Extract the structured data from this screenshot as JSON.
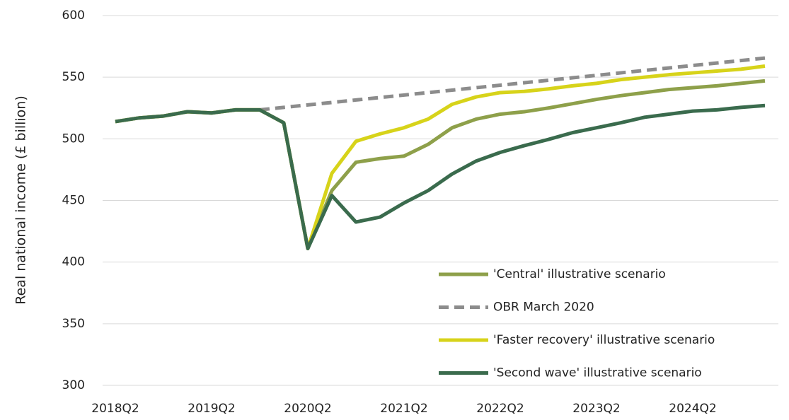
{
  "chart_data": {
    "type": "line",
    "y_label": "Real national income (£ billion)",
    "categories": [
      "2018Q2",
      null,
      null,
      null,
      "2019Q2",
      null,
      null,
      null,
      "2020Q2",
      null,
      null,
      null,
      "2021Q2",
      null,
      null,
      null,
      "2022Q2",
      null,
      null,
      null,
      "2023Q2",
      null,
      null,
      null,
      "2024Q2",
      null,
      null,
      null
    ],
    "ylim": [
      300,
      600
    ],
    "yticks": [
      300,
      350,
      400,
      450,
      500,
      550,
      600
    ],
    "grid": true,
    "legend": "lower right",
    "series": [
      {
        "name": "'Central' illustrative scenario",
        "color": "#8ea04a",
        "style": "solid",
        "values": [
          514,
          517,
          518.5,
          522,
          521,
          523.5,
          523.5,
          513,
          411,
          458,
          481,
          484,
          486,
          495.5,
          509,
          516,
          520,
          522,
          525,
          528.5,
          532,
          535,
          537.5,
          540,
          541.5,
          543,
          545,
          547
        ]
      },
      {
        "name": "OBR March 2020",
        "color": "#8c8c8c",
        "style": "dashed",
        "values": [
          null,
          null,
          null,
          null,
          null,
          null,
          523.5,
          525.5,
          527.5,
          529.5,
          531.5,
          533.5,
          535.5,
          537.5,
          539.5,
          541.5,
          543.5,
          545.5,
          547.5,
          549.5,
          551.5,
          553.5,
          555.5,
          557.5,
          559.5,
          561.5,
          563.5,
          565.5
        ]
      },
      {
        "name": "'Faster recovery' illustrative scenario",
        "color": "#d7d31a",
        "style": "solid",
        "values": [
          514,
          517,
          518.5,
          522,
          521,
          523.5,
          523.5,
          513,
          411,
          472,
          498,
          504,
          509,
          516,
          528,
          534,
          537.5,
          538.5,
          540.5,
          543,
          545,
          548,
          550,
          552,
          553.5,
          555,
          556.5,
          559
        ]
      },
      {
        "name": "'Second wave' illustrative scenario",
        "color": "#3a6b4d",
        "style": "solid",
        "values": [
          514,
          517,
          518.5,
          522,
          521,
          523.5,
          523.5,
          513,
          411,
          454,
          432.5,
          436.5,
          448,
          458,
          471.5,
          482,
          489,
          494.5,
          499.5,
          505,
          509,
          513,
          517.5,
          520,
          522.5,
          523.5,
          525.5,
          527
        ]
      }
    ]
  }
}
